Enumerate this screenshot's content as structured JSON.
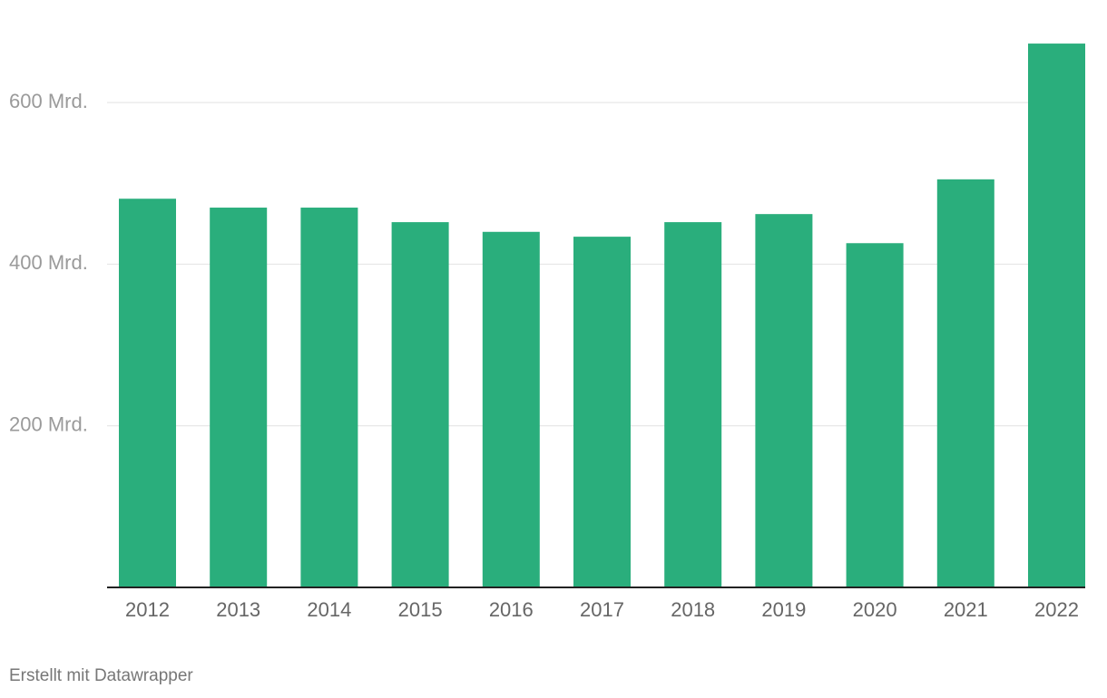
{
  "chart_data": {
    "type": "bar",
    "categories": [
      "2012",
      "2013",
      "2014",
      "2015",
      "2016",
      "2017",
      "2018",
      "2019",
      "2020",
      "2021",
      "2022"
    ],
    "values": [
      481,
      470,
      470,
      452,
      440,
      434,
      452,
      462,
      426,
      505,
      673
    ],
    "color": "#2aae7c",
    "ylim": [
      0,
      700
    ],
    "yticks": [
      {
        "value": 200,
        "label": "200 Mrd."
      },
      {
        "value": 400,
        "label": "400 Mrd."
      },
      {
        "value": 600,
        "label": "600 Mrd."
      }
    ],
    "grid": true,
    "footer": "Erstellt mit Datawrapper"
  }
}
